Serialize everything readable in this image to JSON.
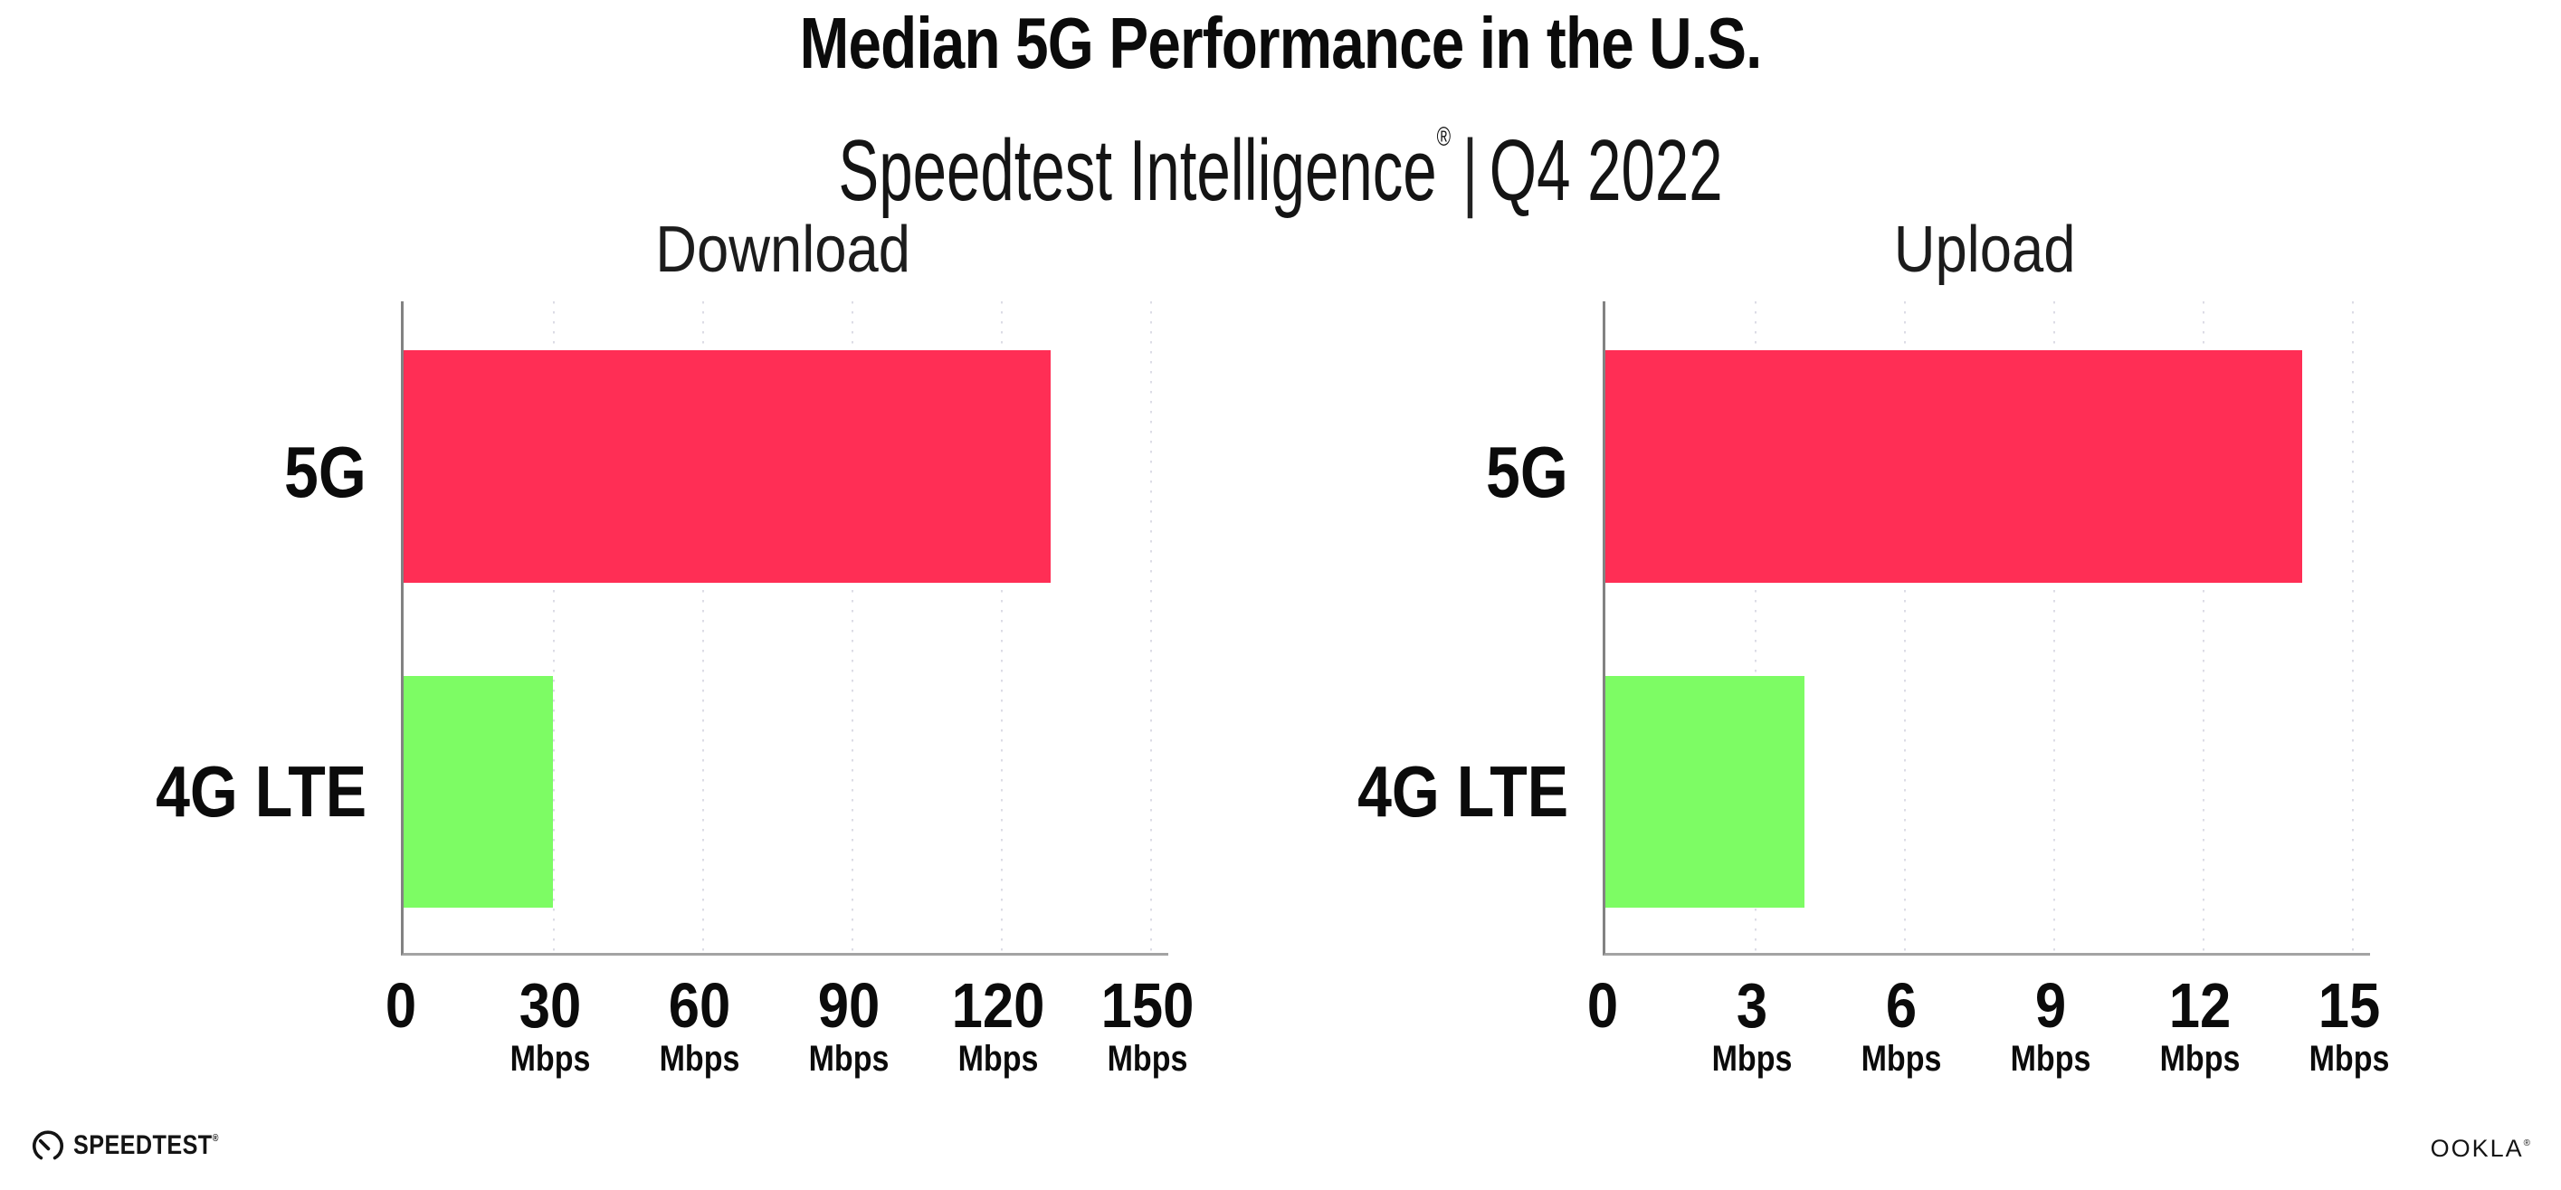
{
  "header": {
    "title": "Median 5G Performance in the U.S.",
    "subtitle": {
      "brand": "Speedtest Intelligence",
      "registered": "®",
      "separator": "|",
      "period": "Q4 2022"
    }
  },
  "colors": {
    "bar_5g": "#FF2E55",
    "bar_4g_lte": "#7DFC64",
    "axis": "#8A8A8A",
    "gridline": "#DCDCE6",
    "text": "#0B0B0B"
  },
  "chart_data": [
    {
      "type": "bar",
      "orientation": "horizontal",
      "title": "Download",
      "categories": [
        "5G",
        "4G LTE"
      ],
      "values": [
        130,
        30
      ],
      "unit": "Mbps",
      "xlim": [
        0,
        150
      ],
      "xticks": [
        0,
        30,
        60,
        90,
        120,
        150
      ],
      "tick_unit_label": "Mbps",
      "grid": "vertical-dotted",
      "legend": "none",
      "bar_colors": [
        "#FF2E55",
        "#7DFC64"
      ]
    },
    {
      "type": "bar",
      "orientation": "horizontal",
      "title": "Upload",
      "categories": [
        "5G",
        "4G LTE"
      ],
      "values": [
        14,
        4
      ],
      "unit": "Mbps",
      "xlim": [
        0,
        15
      ],
      "xticks": [
        0,
        3,
        6,
        9,
        12,
        15
      ],
      "tick_unit_label": "Mbps",
      "grid": "vertical-dotted",
      "legend": "none",
      "bar_colors": [
        "#FF2E55",
        "#7DFC64"
      ]
    }
  ],
  "footer": {
    "speedtest": {
      "label": "SPEEDTEST",
      "registered": "®"
    },
    "ookla": {
      "label": "OOKLA",
      "registered": "®"
    }
  }
}
